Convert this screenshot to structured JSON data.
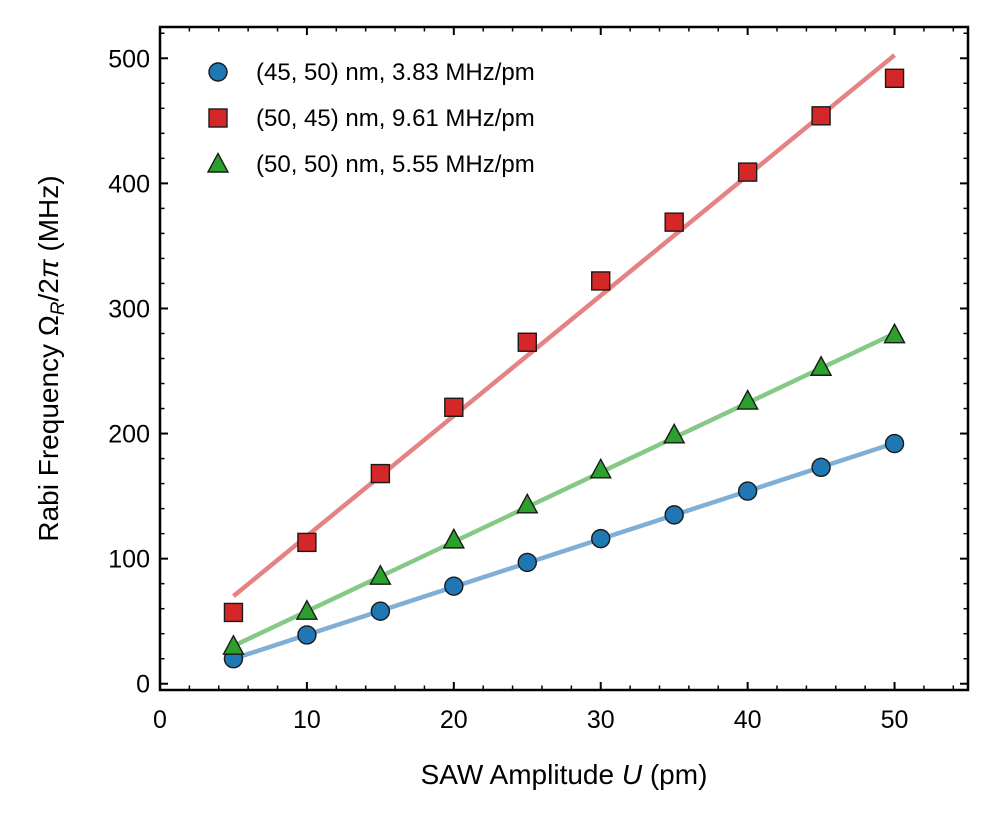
{
  "chart_data": {
    "type": "scatter",
    "title": "",
    "xlabel": {
      "pre": "SAW Amplitude ",
      "var": "U",
      "post": " (pm)"
    },
    "ylabel": {
      "pre": "Rabi Frequency ",
      "omega": "Ω",
      "sub": "R",
      "mid": "/2",
      "pi": "π",
      "post": " (MHz)"
    },
    "xlim": [
      0,
      55
    ],
    "ylim": [
      -5,
      525
    ],
    "xticks": [
      0,
      10,
      20,
      30,
      40,
      50
    ],
    "yticks": [
      0,
      100,
      200,
      300,
      400,
      500
    ],
    "x_minor_step": 2,
    "y_minor_step": 20,
    "x": [
      5,
      10,
      15,
      20,
      25,
      30,
      35,
      40,
      45,
      50
    ],
    "legend_position": "upper-left",
    "series": [
      {
        "name": "(45, 50) nm, 3.83 MHz/pm",
        "marker": "circle",
        "marker_color": "#1f77b4",
        "line_color": "#7fafd6",
        "values": [
          20,
          39,
          58,
          78,
          97,
          116,
          135,
          154,
          173,
          192
        ],
        "fit_slope": 3.83,
        "fit_intercept": 0.8
      },
      {
        "name": "(50, 45) nm, 9.61 MHz/pm",
        "marker": "square",
        "marker_color": "#d62728",
        "line_color": "#e58284",
        "values": [
          57,
          113,
          168,
          221,
          273,
          322,
          369,
          409,
          454,
          484
        ],
        "fit_slope": 9.61,
        "fit_intercept": 22
      },
      {
        "name": "(50, 50) nm, 5.55 MHz/pm",
        "marker": "triangle",
        "marker_color": "#2ca02c",
        "line_color": "#86c987",
        "values": [
          30,
          58,
          86,
          115,
          143,
          171,
          199,
          226,
          253,
          279
        ],
        "fit_slope": 5.55,
        "fit_intercept": 2.5
      }
    ]
  }
}
